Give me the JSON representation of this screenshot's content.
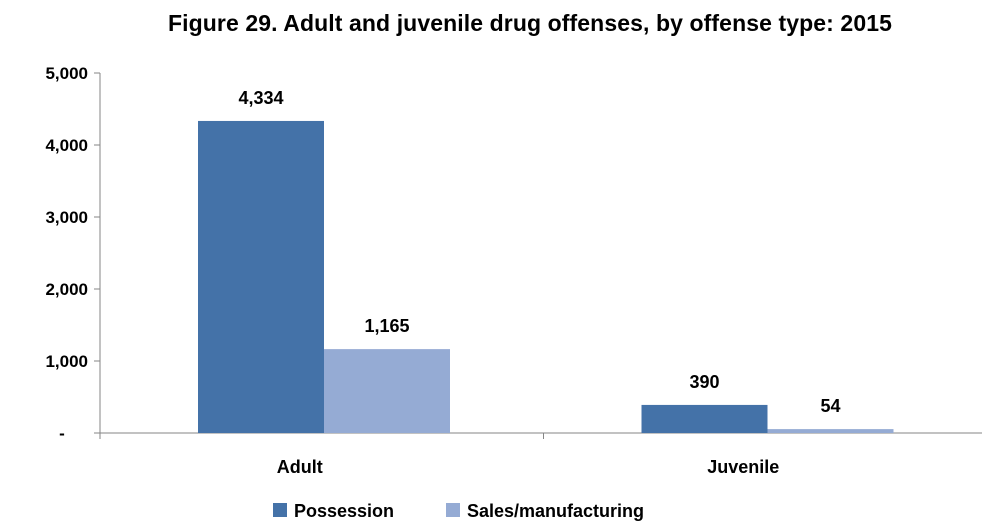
{
  "chart_data": {
    "type": "bar",
    "title": "Figure 29. Adult and juvenile drug offenses, by offense type: 2015",
    "categories": [
      "Adult",
      "Juvenile"
    ],
    "series": [
      {
        "name": "Possession",
        "values": [
          4334,
          390
        ],
        "labels": [
          "4,334",
          "390"
        ]
      },
      {
        "name": "Sales/manufacturing",
        "values": [
          1165,
          54
        ],
        "labels": [
          "1,165",
          "54"
        ]
      }
    ],
    "y_ticks": [
      {
        "value": 0,
        "label": "-"
      },
      {
        "value": 1000,
        "label": "1,000"
      },
      {
        "value": 2000,
        "label": "2,000"
      },
      {
        "value": 3000,
        "label": "3,000"
      },
      {
        "value": 4000,
        "label": "4,000"
      },
      {
        "value": 5000,
        "label": "5,000"
      }
    ],
    "ylim": [
      0,
      5000
    ],
    "xlabel": "",
    "ylabel": "",
    "grid": false,
    "legend_position": "bottom",
    "colors": [
      "#4472a8",
      "#95abd4"
    ]
  }
}
